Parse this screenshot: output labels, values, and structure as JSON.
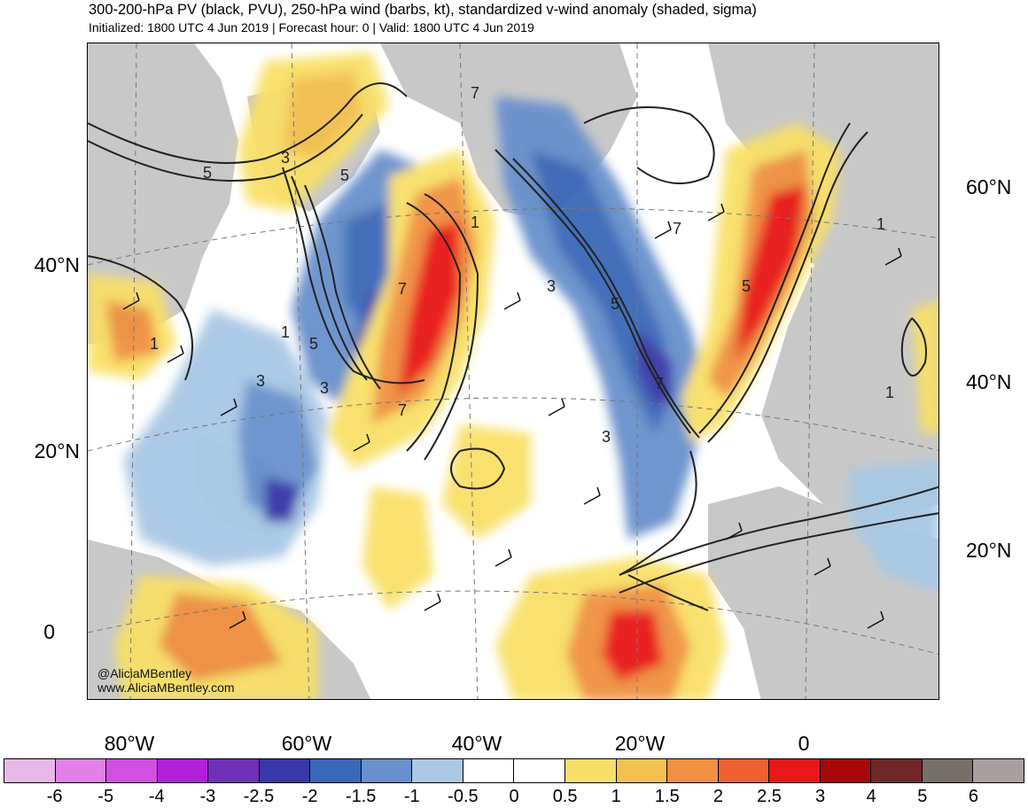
{
  "header": {
    "title": "300-200-hPa PV (black, PVU), 250-hPa wind (barbs, kt), standardized v-wind anomaly (shaded, sigma)",
    "subtitle": "Initialized: 1800 UTC 4 Jun 2019 | Forecast hour: 0 | Valid: 1800 UTC 4 Jun 2019"
  },
  "map": {
    "lon_labels": [
      "80°W",
      "60°W",
      "40°W",
      "20°W",
      "0"
    ],
    "lat_labels_left": [
      "40°N",
      "20°N",
      "0"
    ],
    "lat_labels_right": [
      "60°N",
      "40°N",
      "20°N"
    ],
    "contour_labels": [
      "5",
      "3",
      "5",
      "1",
      "3",
      "5",
      "3",
      "1",
      "7",
      "5",
      "3",
      "7",
      "5",
      "7",
      "1",
      "7",
      "7",
      "1",
      "1",
      "3"
    ],
    "credit_twitter": "@AliciaMBentley",
    "credit_web": "www.AliciaMBentley.com"
  },
  "colorbar": {
    "colors": [
      "#e8b8e8",
      "#e080e8",
      "#d050e0",
      "#b020d8",
      "#7030b8",
      "#3838a8",
      "#3a68b8",
      "#6890cc",
      "#a8c8e4",
      "#ffffff",
      "#ffffff",
      "#f8e068",
      "#f4c050",
      "#f09040",
      "#f06030",
      "#e81818",
      "#a80808",
      "#702828",
      "#787068",
      "#a8a0a0"
    ],
    "ticks": [
      "-6",
      "-5",
      "-4",
      "-3",
      "-2.5",
      "-2",
      "-1.5",
      "-1",
      "-0.5",
      "0",
      "0.5",
      "1",
      "1.5",
      "2",
      "2.5",
      "3",
      "4",
      "5",
      "6"
    ]
  }
}
